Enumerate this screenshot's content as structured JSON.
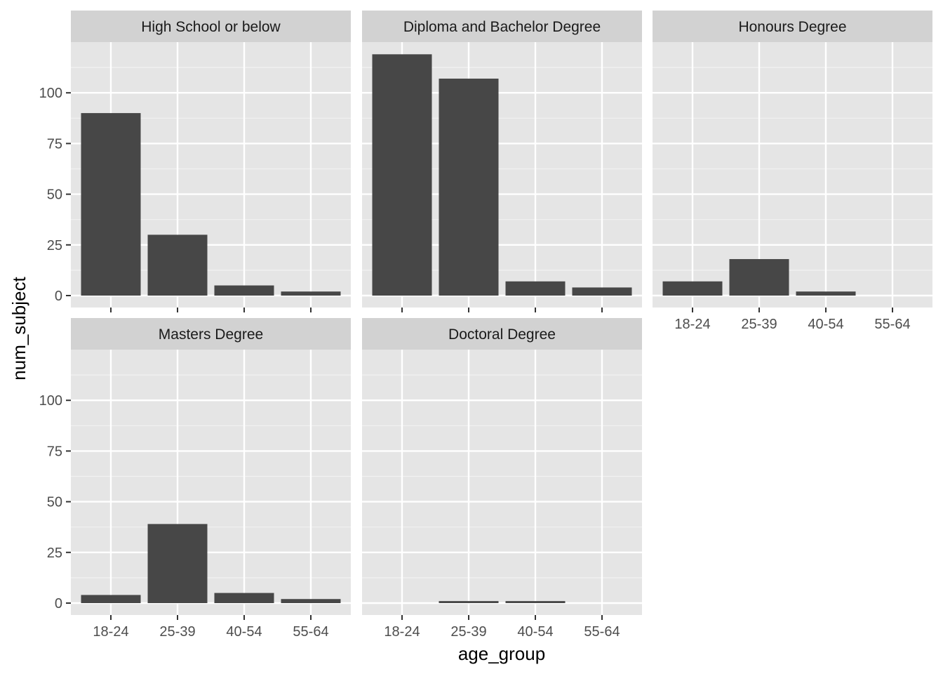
{
  "chart_data": {
    "type": "bar",
    "layout": "facet_wrap",
    "xlabel": "age_group",
    "ylabel": "num_subject",
    "ylim": [
      -5,
      125
    ],
    "yticks": [
      0,
      25,
      50,
      75,
      100
    ],
    "categories": [
      "18-24",
      "25-39",
      "40-54",
      "55-64"
    ],
    "bar_color": "#474747",
    "panel_background": "#e5e5e5",
    "strip_background": "#d2d2d2",
    "grid": true,
    "facets": [
      {
        "label": "High School or below",
        "values": [
          90,
          30,
          5,
          2
        ]
      },
      {
        "label": "Diploma and Bachelor Degree",
        "values": [
          119,
          107,
          7,
          4
        ]
      },
      {
        "label": "Honours Degree",
        "values": [
          7,
          18,
          2,
          0
        ]
      },
      {
        "label": "Masters Degree",
        "values": [
          4,
          39,
          5,
          2
        ]
      },
      {
        "label": "Doctoral Degree",
        "values": [
          0,
          1,
          1,
          0
        ]
      }
    ]
  }
}
